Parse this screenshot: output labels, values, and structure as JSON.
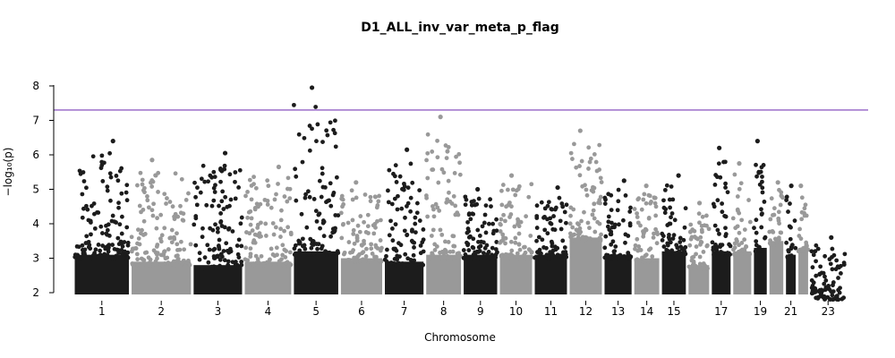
{
  "chart_data": {
    "type": "scatter",
    "subtype": "manhattan",
    "title": "D1_ALL_inv_var_meta_p_flag",
    "xlabel": "Chromosome",
    "ylabel": "−log₁₀(p)",
    "ylim": [
      2,
      8.2
    ],
    "yticks": [
      2,
      3,
      4,
      5,
      6,
      7,
      8
    ],
    "grid": false,
    "legend": "none",
    "significance_line": {
      "y": 7.3,
      "color": "#7b3fb8"
    },
    "colors": {
      "odd": "#1c1c1c",
      "even": "#999999"
    },
    "chromosomes": [
      {
        "label": "1",
        "start": 0,
        "end": 220,
        "tick": true,
        "peak": 6.4,
        "base": 3.8
      },
      {
        "label": "2",
        "start": 220,
        "end": 460,
        "tick": true,
        "peak": 5.85,
        "base": 3.6
      },
      {
        "label": "3",
        "start": 460,
        "end": 658,
        "tick": true,
        "peak": 6.05,
        "base": 3.5
      },
      {
        "label": "4",
        "start": 658,
        "end": 848,
        "tick": true,
        "peak": 5.65,
        "base": 3.6
      },
      {
        "label": "5",
        "start": 848,
        "end": 1030,
        "tick": true,
        "peak": 7.95,
        "base": 3.9
      },
      {
        "label": "6",
        "start": 1030,
        "end": 1200,
        "tick": true,
        "peak": 5.2,
        "base": 3.7
      },
      {
        "label": "7",
        "start": 1200,
        "end": 1360,
        "tick": true,
        "peak": 6.15,
        "base": 3.6
      },
      {
        "label": "8",
        "start": 1360,
        "end": 1505,
        "tick": true,
        "peak": 7.1,
        "base": 3.8
      },
      {
        "label": "9",
        "start": 1505,
        "end": 1645,
        "tick": true,
        "peak": 5.0,
        "base": 3.8
      },
      {
        "label": "10",
        "start": 1645,
        "end": 1780,
        "tick": true,
        "peak": 5.4,
        "base": 3.8
      },
      {
        "label": "11",
        "start": 1780,
        "end": 1915,
        "tick": true,
        "peak": 5.05,
        "base": 3.8
      },
      {
        "label": "12",
        "start": 1915,
        "end": 2050,
        "tick": true,
        "peak": 6.7,
        "base": 4.3
      },
      {
        "label": "13",
        "start": 2050,
        "end": 2165,
        "tick": true,
        "peak": 5.25,
        "base": 3.8
      },
      {
        "label": "14",
        "start": 2165,
        "end": 2272,
        "tick": true,
        "peak": 5.1,
        "base": 3.7
      },
      {
        "label": "15",
        "start": 2272,
        "end": 2375,
        "tick": true,
        "peak": 5.4,
        "base": 3.9
      },
      {
        "label": "16",
        "start": 2375,
        "end": 2465,
        "tick": false,
        "peak": 4.6,
        "base": 3.5
      },
      {
        "label": "17",
        "start": 2465,
        "end": 2548,
        "tick": true,
        "peak": 6.2,
        "base": 3.9
      },
      {
        "label": "18",
        "start": 2548,
        "end": 2628,
        "tick": false,
        "peak": 5.75,
        "base": 3.9
      },
      {
        "label": "19",
        "start": 2628,
        "end": 2688,
        "tick": true,
        "peak": 6.4,
        "base": 4.0
      },
      {
        "label": "20",
        "start": 2688,
        "end": 2752,
        "tick": false,
        "peak": 5.2,
        "base": 4.2
      },
      {
        "label": "21",
        "start": 2752,
        "end": 2800,
        "tick": true,
        "peak": 5.1,
        "base": 3.8
      },
      {
        "label": "22",
        "start": 2800,
        "end": 2848,
        "tick": false,
        "peak": 5.1,
        "base": 4.0
      },
      {
        "label": "23",
        "start": 2848,
        "end": 2992,
        "tick": true,
        "peak": 3.6,
        "base": 2.6
      }
    ]
  }
}
